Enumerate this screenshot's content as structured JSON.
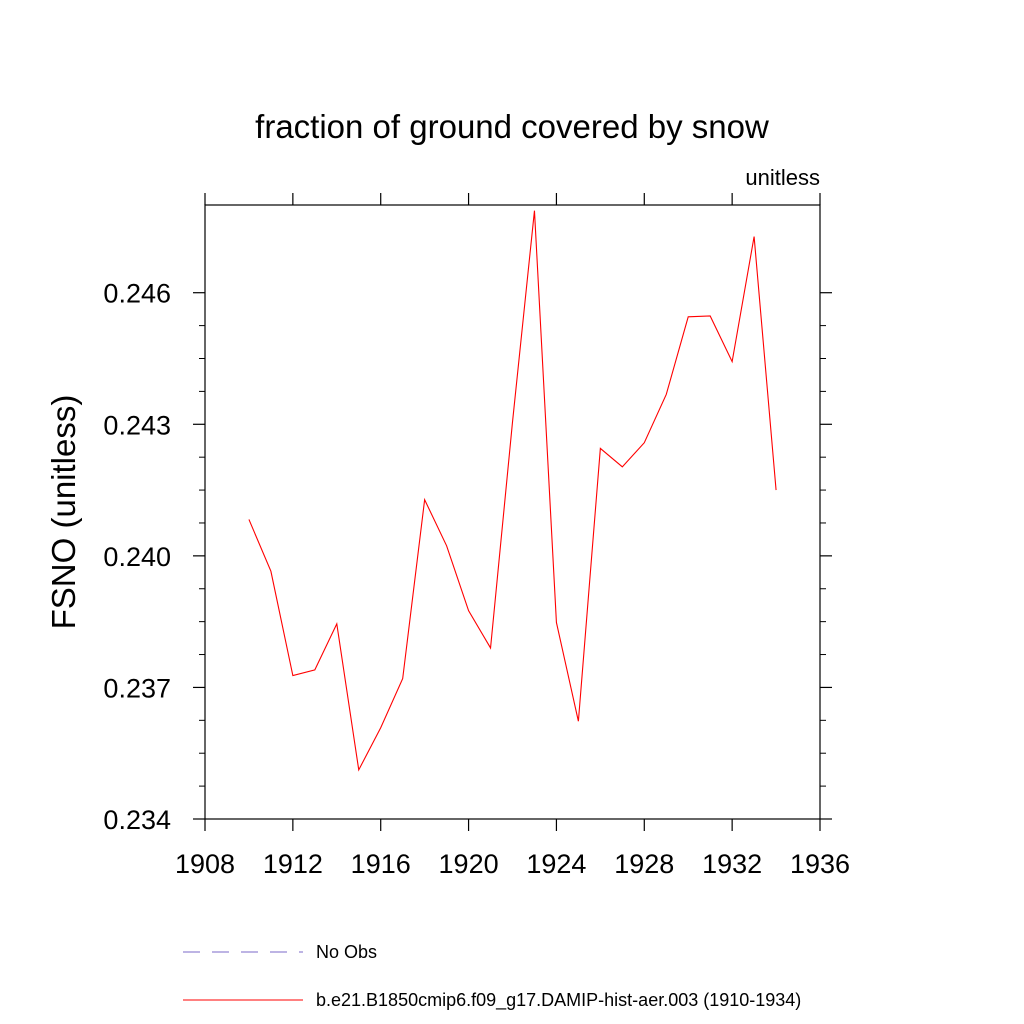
{
  "chart_data": {
    "type": "line",
    "title": "fraction of ground covered by snow",
    "units_label": "unitless",
    "ylabel": "FSNO  (unitless)",
    "xlim": [
      1908,
      1936
    ],
    "ylim": [
      0.234,
      0.248
    ],
    "x_ticks": [
      1908,
      1912,
      1916,
      1920,
      1924,
      1928,
      1932,
      1936
    ],
    "x_tick_labels": [
      "1908",
      "1912",
      "1916",
      "1920",
      "1924",
      "1928",
      "1932",
      "1936"
    ],
    "y_ticks": [
      0.234,
      0.237,
      0.24,
      0.243,
      0.246
    ],
    "y_tick_labels": [
      "0.234",
      "0.237",
      "0.240",
      "0.243",
      "0.246"
    ],
    "grid": false,
    "legend_position": "bottom",
    "series": [
      {
        "name": "b.e21.B1850cmip6.f09_g17.DAMIP-hist-aer.003 (1910-1934)",
        "color": "#ff0000",
        "style": "solid",
        "x": [
          1910,
          1911,
          1912,
          1913,
          1914,
          1915,
          1916,
          1917,
          1918,
          1919,
          1920,
          1921,
          1922,
          1923,
          1924,
          1925,
          1926,
          1927,
          1928,
          1929,
          1930,
          1931,
          1932,
          1933,
          1934
        ],
        "y": [
          0.24083,
          0.23965,
          0.23727,
          0.2374,
          0.23845,
          0.23512,
          0.23608,
          0.2372,
          0.24128,
          0.24023,
          0.23875,
          0.2379,
          0.24305,
          0.24787,
          0.23848,
          0.23623,
          0.24245,
          0.24203,
          0.24258,
          0.24368,
          0.24545,
          0.24547,
          0.24443,
          0.24728,
          0.2415
        ]
      }
    ],
    "legend": [
      {
        "label": "No Obs",
        "color": "#7b68c8",
        "style": "dashed"
      },
      {
        "label": "b.e21.B1850cmip6.f09_g17.DAMIP-hist-aer.003 (1910-1934)",
        "color": "#ff0000",
        "style": "solid"
      }
    ]
  }
}
